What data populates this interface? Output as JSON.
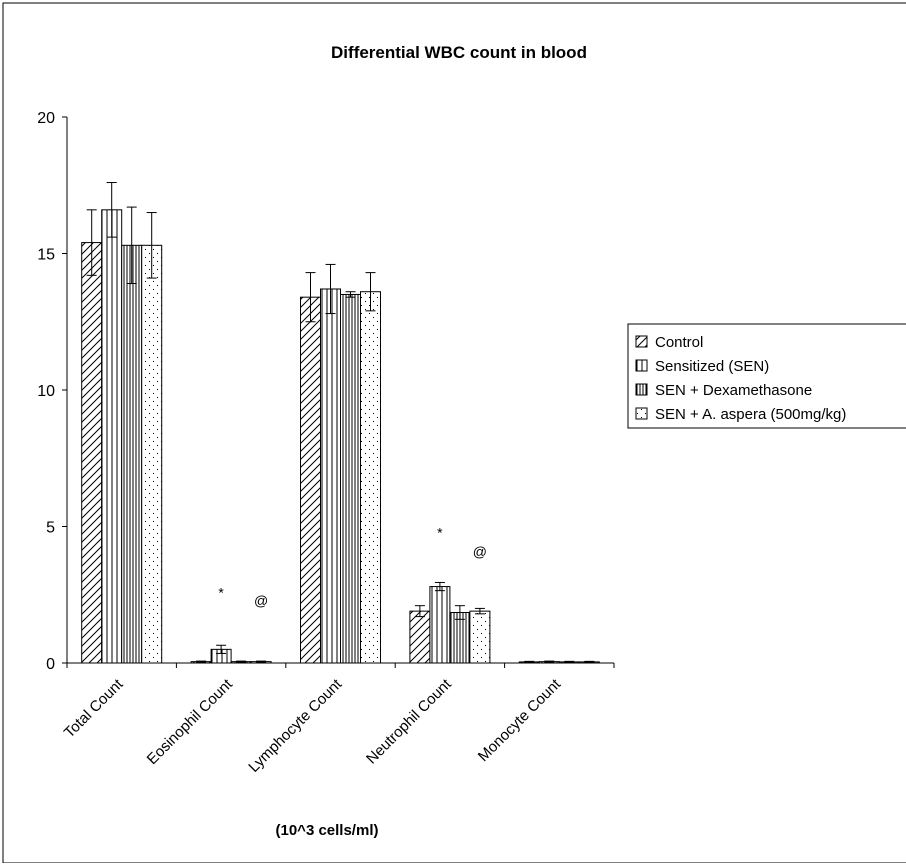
{
  "chart_data": {
    "type": "bar",
    "title": "Differential WBC count in blood",
    "xlabel": "(10^3 cells/ml)",
    "ylabel": "",
    "ylim": [
      0,
      20
    ],
    "yticks": [
      0,
      5,
      10,
      15,
      20
    ],
    "grid": false,
    "legend_position": "right",
    "categories": [
      "Total Count",
      "Eosinophil Count",
      "Lymphocyte Count",
      "Neutrophil Count",
      "Monocyte Count"
    ],
    "series": [
      {
        "name": "Control",
        "pattern": "diagonal-hatch",
        "values": [
          15.4,
          0.05,
          13.4,
          1.9,
          0.04
        ],
        "errors": [
          1.2,
          0.02,
          0.9,
          0.2,
          0.02
        ]
      },
      {
        "name": "Sensitized (SEN)",
        "pattern": "vertical-lines",
        "values": [
          16.6,
          0.5,
          13.7,
          2.8,
          0.05
        ],
        "errors": [
          1.0,
          0.15,
          0.9,
          0.15,
          0.02
        ]
      },
      {
        "name": "SEN + Dexamethasone",
        "pattern": "dense-vertical-lines",
        "values": [
          15.3,
          0.05,
          13.5,
          1.85,
          0.04
        ],
        "errors": [
          1.4,
          0.02,
          0.1,
          0.25,
          0.02
        ]
      },
      {
        "name": "SEN + A. aspera (500mg/kg)",
        "pattern": "dots",
        "values": [
          15.3,
          0.05,
          13.6,
          1.9,
          0.04
        ],
        "errors": [
          1.2,
          0.02,
          0.7,
          0.1,
          0.02
        ]
      }
    ],
    "annotations": [
      {
        "text": "*",
        "category": 1,
        "series": 1,
        "y": 2.4
      },
      {
        "text": "@",
        "category": 1,
        "series": 3,
        "y": 2.1
      },
      {
        "text": "*",
        "category": 3,
        "series": 1,
        "y": 4.6
      },
      {
        "text": "@",
        "category": 3,
        "series": 3,
        "y": 3.9
      }
    ]
  }
}
